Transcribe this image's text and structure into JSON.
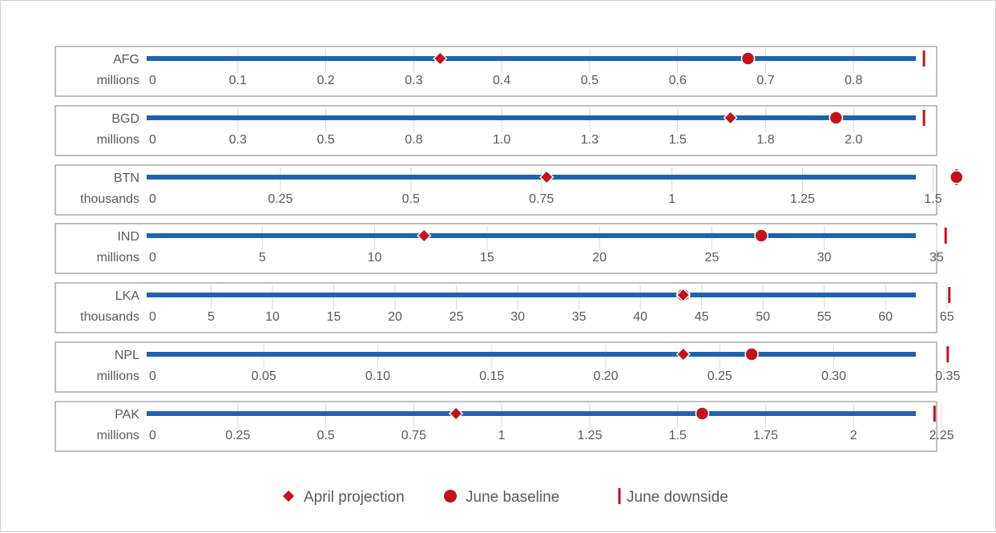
{
  "chart_data": {
    "type": "dot-range",
    "legend": {
      "position": "bottom",
      "items": [
        {
          "label": "April projection",
          "marker": "diamond"
        },
        {
          "label": "June baseline",
          "marker": "circle"
        },
        {
          "label": "June downside",
          "marker": "bar"
        }
      ]
    },
    "colors": {
      "bar": "#1f63ad",
      "marker": "#c0141a",
      "grid": "#d9d9d9",
      "text": "#595959",
      "border": "#7f7f7f"
    },
    "panels": [
      {
        "country": "AFG",
        "unit": "millions",
        "xmax": 0.92,
        "ticks": [
          0,
          0.1,
          0.2,
          0.3,
          0.4,
          0.5,
          0.6,
          0.7,
          0.8
        ],
        "tick_labels": [
          "0",
          "0.1",
          "0.2",
          "0.3",
          "0.4",
          "0.5",
          "0.6",
          "0.7",
          "0.8"
        ],
        "april": 0.33,
        "june_baseline": 0.68,
        "june_downside": 0.88
      },
      {
        "country": "BGD",
        "unit": "millions",
        "xmax": 2.3,
        "ticks": [
          0,
          0.25,
          0.5,
          0.75,
          1.0,
          1.25,
          1.5,
          1.75,
          2.0
        ],
        "tick_labels": [
          "0",
          "0.3",
          "0.5",
          "0.8",
          "1.0",
          "1.3",
          "1.5",
          "1.8",
          "2.0"
        ],
        "april": 1.65,
        "june_baseline": 1.95,
        "june_downside": 2.2
      },
      {
        "country": "BTN",
        "unit": "thousands",
        "xmax": 1.55,
        "ticks": [
          0,
          0.25,
          0.5,
          0.75,
          1,
          1.25,
          1.5
        ],
        "tick_labels": [
          "0",
          "0.25",
          "0.5",
          "0.75",
          "1",
          "1.25",
          "1.5"
        ],
        "april": 0.76,
        "june_baseline": 1.545,
        "june_downside": 1.545
      },
      {
        "country": "IND",
        "unit": "millions",
        "xmax": 36.0,
        "ticks": [
          0,
          5,
          10,
          15,
          20,
          25,
          30,
          35
        ],
        "tick_labels": [
          "0",
          "5",
          "10",
          "15",
          "20",
          "25",
          "30",
          "35"
        ],
        "april": 12.2,
        "june_baseline": 27.2,
        "june_downside": 35.4
      },
      {
        "country": "LKA",
        "unit": "thousands",
        "xmax": 66.0,
        "ticks": [
          0,
          5,
          10,
          15,
          20,
          25,
          30,
          35,
          40,
          45,
          50,
          55,
          60,
          65
        ],
        "tick_labels": [
          "0",
          "5",
          "10",
          "15",
          "20",
          "25",
          "30",
          "35",
          "40",
          "45",
          "50",
          "55",
          "60",
          "65"
        ],
        "april": 43.5,
        "june_baseline": 43.5,
        "june_downside": 65.2
      },
      {
        "country": "NPL",
        "unit": "millions",
        "xmax": 0.355,
        "ticks": [
          0,
          0.05,
          0.1,
          0.15,
          0.2,
          0.25,
          0.3,
          0.35
        ],
        "tick_labels": [
          "0",
          "0.05",
          "0.10",
          "0.15",
          "0.20",
          "0.25",
          "0.30",
          "0.35"
        ],
        "april": 0.234,
        "june_baseline": 0.264,
        "june_downside": 0.35
      },
      {
        "country": "PAK",
        "unit": "millions",
        "xmax": 2.3,
        "ticks": [
          0,
          0.25,
          0.5,
          0.75,
          1,
          1.25,
          1.5,
          1.75,
          2,
          2.25
        ],
        "tick_labels": [
          "0",
          "0.25",
          "0.5",
          "0.75",
          "1",
          "1.25",
          "1.5",
          "1.75",
          "2",
          "2.25"
        ],
        "april": 0.87,
        "june_baseline": 1.57,
        "june_downside": 2.23
      }
    ]
  }
}
